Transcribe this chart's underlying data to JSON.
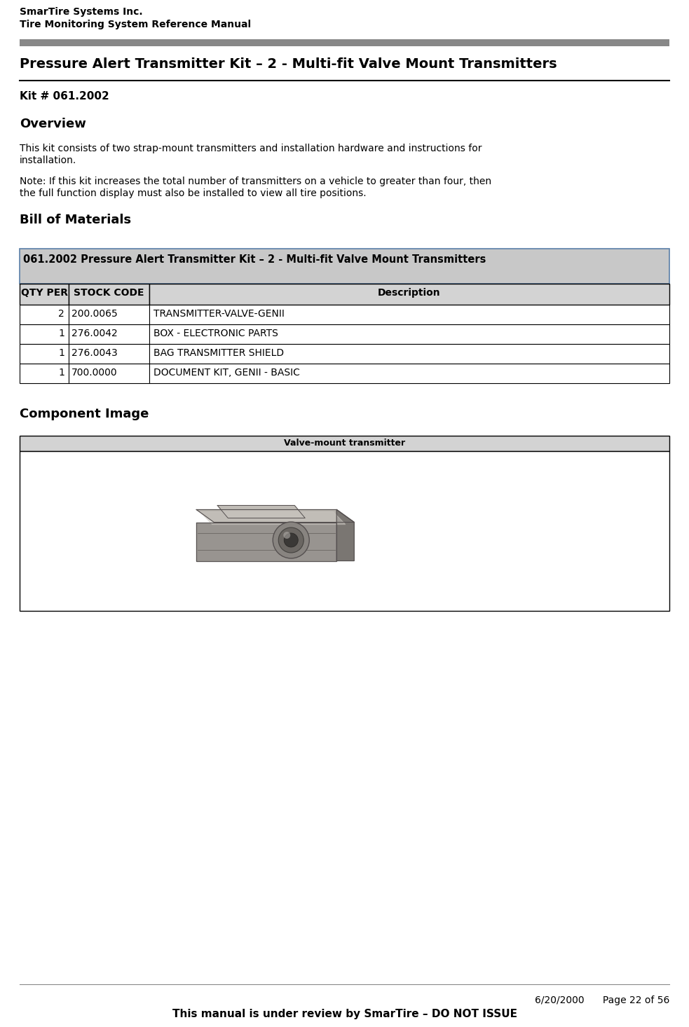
{
  "header_line1": "SmarTire Systems Inc.",
  "header_line2": "Tire Monitoring System Reference Manual",
  "page_title": "Pressure Alert Transmitter Kit – 2 - Multi-fit Valve Mount Transmitters",
  "kit_number": "Kit # 061.2002",
  "section_overview": "Overview",
  "overview_text1": "This kit consists of two strap-mount transmitters and installation hardware and instructions for",
  "overview_text2": "installation.",
  "note_text1": "Note: If this kit increases the total number of transmitters on a vehicle to greater than four, then",
  "note_text2": "the full function display must also be installed to view all tire positions.",
  "section_bom": "Bill of Materials",
  "table_title": "061.2002 Pressure Alert Transmitter Kit – 2 - Multi-fit Valve Mount Transmitters",
  "table_header": [
    "QTY PER",
    "STOCK CODE",
    "Description"
  ],
  "table_rows": [
    [
      "2",
      "200.0065",
      "TRANSMITTER-VALVE-GENII"
    ],
    [
      "1",
      "276.0042",
      "BOX - ELECTRONIC PARTS"
    ],
    [
      "1",
      "276.0043",
      "BAG TRANSMITTER SHIELD"
    ],
    [
      "1",
      "700.0000",
      "DOCUMENT KIT, GENII - BASIC"
    ]
  ],
  "section_component": "Component Image",
  "component_label": "Valve-mount transmitter",
  "footer_date": "6/20/2000",
  "footer_page": "Page 22 of 56",
  "footer_note": "This manual is under review by SmarTire – DO NOT ISSUE",
  "bg_color": "#ffffff",
  "table_header_bg": "#d3d3d3",
  "table_title_bg": "#c8c8c8",
  "table_border": "#000000",
  "component_header_bg": "#d3d3d3",
  "separator_color": "#999999",
  "header_separator_color": "#888888"
}
